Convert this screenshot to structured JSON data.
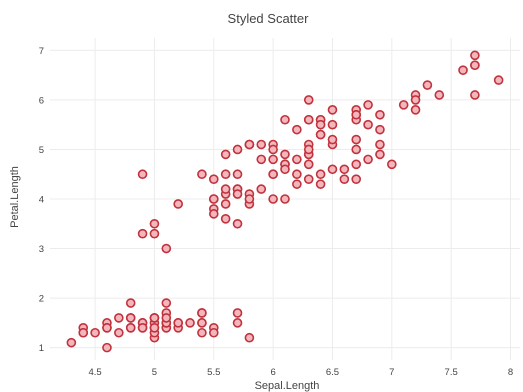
{
  "chart_data": {
    "type": "scatter",
    "title": "Styled Scatter",
    "xlabel": "Sepal.Length",
    "ylabel": "Petal.Length",
    "xlim": [
      4.12,
      8.08
    ],
    "ylim": [
      0.75,
      7.25
    ],
    "xticks": [
      "4.5",
      "5",
      "5.5",
      "6",
      "6.5",
      "7",
      "7.5",
      "8"
    ],
    "yticks": [
      "1",
      "2",
      "3",
      "4",
      "5",
      "6",
      "7"
    ],
    "grid": true,
    "legend": "none",
    "marker": {
      "fill": "#f4b6bd",
      "stroke": "#c0323c"
    },
    "series": [
      {
        "x": [
          5.1,
          4.9,
          4.7,
          4.6,
          5.0,
          5.4,
          4.6,
          5.0,
          4.4,
          4.9,
          5.4,
          4.8,
          4.8,
          4.3,
          5.8,
          5.7,
          5.4,
          5.1,
          5.7,
          5.1,
          5.4,
          5.1,
          4.6,
          5.1,
          4.8,
          5.0,
          5.0,
          5.2,
          5.2,
          4.7,
          4.8,
          5.4,
          5.2,
          5.5,
          4.9,
          5.0,
          5.5,
          4.9,
          4.4,
          5.1,
          5.0,
          4.5,
          4.4,
          5.0,
          5.1,
          4.8,
          5.1,
          4.6,
          5.3,
          5.0,
          7.0,
          6.4,
          6.9,
          5.5,
          6.5,
          5.7,
          6.3,
          4.9,
          6.6,
          5.2,
          5.0,
          5.9,
          6.0,
          6.1,
          5.6,
          6.7,
          5.6,
          5.8,
          6.2,
          5.6,
          5.9,
          6.1,
          6.3,
          6.1,
          6.4,
          6.6,
          6.8,
          6.7,
          6.0,
          5.7,
          5.5,
          5.5,
          5.8,
          6.0,
          5.4,
          6.0,
          6.7,
          6.3,
          5.6,
          5.5,
          5.5,
          6.1,
          5.8,
          5.0,
          5.6,
          5.7,
          5.7,
          6.2,
          5.1,
          5.7,
          6.3,
          5.8,
          7.1,
          6.3,
          6.5,
          7.6,
          4.9,
          7.3,
          6.7,
          7.2,
          6.5,
          6.4,
          6.8,
          5.7,
          5.8,
          6.4,
          6.5,
          7.7,
          7.7,
          6.0,
          6.9,
          5.6,
          7.7,
          6.3,
          6.7,
          7.2,
          6.2,
          6.1,
          6.4,
          7.2,
          7.4,
          7.9,
          6.4,
          6.3,
          6.1,
          7.7,
          6.3,
          6.4,
          6.0,
          6.9,
          6.7,
          6.9,
          5.8,
          6.8,
          6.7,
          6.7,
          6.3,
          6.5,
          6.2,
          5.9
        ],
        "y": [
          1.4,
          1.4,
          1.3,
          1.5,
          1.4,
          1.7,
          1.4,
          1.5,
          1.4,
          1.5,
          1.5,
          1.6,
          1.4,
          1.1,
          1.2,
          1.5,
          1.3,
          1.4,
          1.7,
          1.5,
          1.7,
          1.5,
          1.0,
          1.7,
          1.9,
          1.6,
          1.6,
          1.5,
          1.4,
          1.6,
          1.6,
          1.5,
          1.5,
          1.4,
          1.5,
          1.2,
          1.3,
          1.4,
          1.3,
          1.5,
          1.3,
          1.3,
          1.3,
          1.6,
          1.9,
          1.4,
          1.6,
          1.4,
          1.5,
          1.4,
          4.7,
          4.5,
          4.9,
          4.0,
          4.6,
          4.5,
          4.7,
          3.3,
          4.6,
          3.9,
          3.5,
          4.2,
          4.0,
          4.7,
          3.6,
          4.4,
          4.5,
          4.1,
          4.5,
          3.9,
          4.8,
          4.0,
          4.9,
          4.7,
          4.3,
          4.4,
          4.8,
          5.0,
          4.5,
          3.5,
          3.8,
          3.7,
          3.9,
          5.1,
          4.5,
          4.5,
          4.7,
          4.4,
          4.1,
          4.0,
          4.4,
          4.6,
          4.0,
          3.3,
          4.2,
          4.2,
          4.2,
          4.3,
          3.0,
          4.1,
          6.0,
          5.1,
          5.9,
          5.6,
          5.8,
          6.6,
          4.5,
          6.3,
          5.8,
          6.1,
          5.1,
          5.3,
          5.5,
          5.0,
          5.1,
          5.3,
          5.5,
          6.7,
          6.9,
          5.0,
          5.7,
          4.9,
          6.7,
          4.9,
          5.7,
          6.0,
          4.8,
          4.9,
          5.6,
          5.8,
          6.1,
          6.4,
          5.6,
          5.1,
          5.6,
          6.1,
          5.6,
          5.5,
          4.8,
          5.4,
          5.6,
          5.1,
          5.1,
          5.9,
          5.7,
          5.2,
          5.0,
          5.2,
          5.4,
          5.1
        ]
      }
    ]
  }
}
